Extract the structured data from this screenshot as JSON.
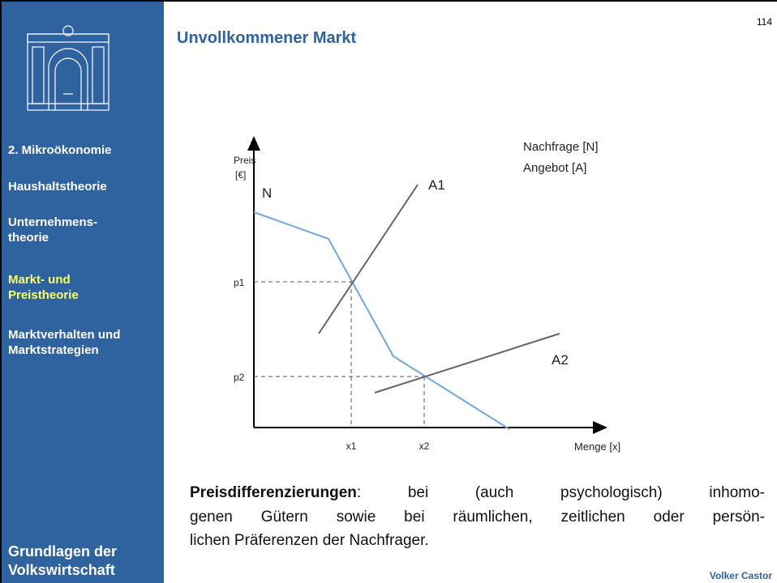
{
  "slide": {
    "number": "114",
    "title": "Unvollkommener Markt",
    "author": "Volker Castor"
  },
  "sidebar": {
    "items": [
      [
        "2. Mikroökonomie"
      ],
      [
        "Haushaltstheorie"
      ],
      [
        "Unternehmens-",
        "theorie"
      ],
      [
        "Markt- und",
        "Preistheorie"
      ],
      [
        "Marktverhalten und",
        "Marktstrategien"
      ]
    ],
    "footer": [
      "Grundlagen der",
      "Volkswirtschaft"
    ]
  },
  "diagram": {
    "y_axis": [
      "Preis",
      "[€]"
    ],
    "x_axis": "Menge [x]",
    "demand": "N",
    "supply1": "A1",
    "supply2": "A2",
    "p1": "p1",
    "p2": "p2",
    "x1": "x1",
    "x2": "x2",
    "legend": [
      "Nachfrage [N]",
      "Angebot [A]"
    ]
  },
  "body": {
    "term": "Preisdifferenzierungen",
    "lines": [
      ": bei (auch psychologisch) inhomo-",
      "genen Gütern sowie bei räumlichen, zeitlichen oder persön-",
      "lichen Präferenzen der Nachfrager."
    ]
  }
}
